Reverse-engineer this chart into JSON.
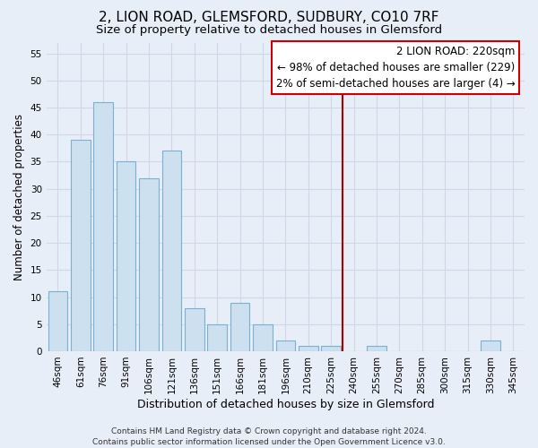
{
  "title": "2, LION ROAD, GLEMSFORD, SUDBURY, CO10 7RF",
  "subtitle": "Size of property relative to detached houses in Glemsford",
  "xlabel": "Distribution of detached houses by size in Glemsford",
  "ylabel": "Number of detached properties",
  "bar_labels": [
    "46sqm",
    "61sqm",
    "76sqm",
    "91sqm",
    "106sqm",
    "121sqm",
    "136sqm",
    "151sqm",
    "166sqm",
    "181sqm",
    "196sqm",
    "210sqm",
    "225sqm",
    "240sqm",
    "255sqm",
    "270sqm",
    "285sqm",
    "300sqm",
    "315sqm",
    "330sqm",
    "345sqm"
  ],
  "bar_values": [
    11,
    39,
    46,
    35,
    32,
    37,
    8,
    5,
    9,
    5,
    2,
    1,
    1,
    0,
    1,
    0,
    0,
    0,
    0,
    2,
    0
  ],
  "bar_color": "#cce0f0",
  "bar_edge_color": "#7ab0d0",
  "vline_color": "#aa0000",
  "annotation_text": "2 LION ROAD: 220sqm\n← 98% of detached houses are smaller (229)\n2% of semi-detached houses are larger (4) →",
  "annotation_box_color": "#ffffff",
  "annotation_box_edge": "#cc0000",
  "ylim": [
    0,
    57
  ],
  "yticks": [
    0,
    5,
    10,
    15,
    20,
    25,
    30,
    35,
    40,
    45,
    50,
    55
  ],
  "footer": "Contains HM Land Registry data © Crown copyright and database right 2024.\nContains public sector information licensed under the Open Government Licence v3.0.",
  "bg_color": "#e8eef8",
  "grid_color": "#d0d8e8",
  "title_fontsize": 11,
  "subtitle_fontsize": 9.5,
  "xlabel_fontsize": 9,
  "ylabel_fontsize": 8.5,
  "tick_fontsize": 7.5,
  "footer_fontsize": 6.5,
  "ann_fontsize": 8.5,
  "vline_pos": 12.5
}
